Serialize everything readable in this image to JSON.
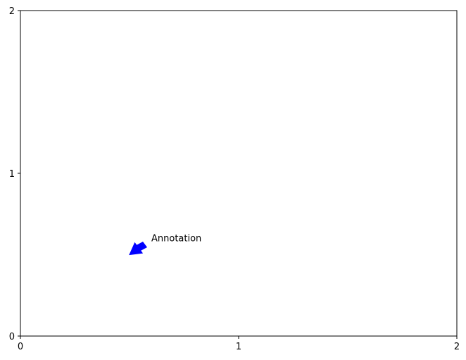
{
  "chart_data": {
    "type": "scatter",
    "title": "",
    "xlabel": "",
    "ylabel": "",
    "xlim": [
      0,
      2
    ],
    "ylim": [
      0,
      2
    ],
    "xticks": [
      0,
      1,
      2
    ],
    "yticks": [
      0,
      1,
      2
    ],
    "xtick_labels": [
      "0",
      "1",
      "2"
    ],
    "ytick_labels": [
      "0",
      "1",
      "2"
    ],
    "grid": false,
    "series": [],
    "annotations": [
      {
        "text": "Annotation",
        "xy": [
          0.5,
          0.5
        ],
        "xytext": [
          0.6,
          0.6
        ],
        "arrow_color": "#0000ff"
      }
    ]
  }
}
